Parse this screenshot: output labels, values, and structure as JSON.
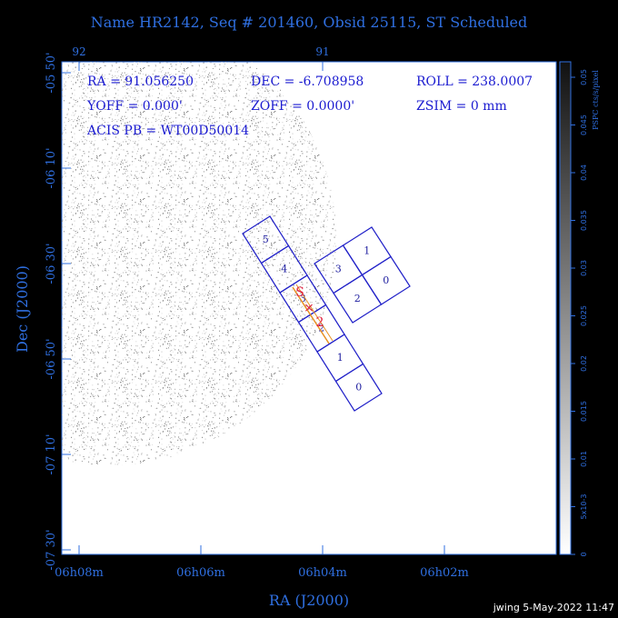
{
  "title": "Name HR2142, Seq # 201460, Obsid 25115, ST Scheduled",
  "info": [
    "RA = 91.056250",
    "DEC = -6.708958",
    "ROLL = 238.0007",
    "YOFF =    0.000'",
    "ZOFF =  0.0000'",
    "ZSIM = 0 mm",
    "ACIS PB = WT00D50014"
  ],
  "top_axis": {
    "tick_labels": [
      "92",
      "91"
    ]
  },
  "x_axis": {
    "label": "RA (J2000)",
    "tick_labels": [
      "06h08m",
      "06h06m",
      "06h04m",
      "06h02m"
    ]
  },
  "y_axis": {
    "label": "Dec (J2000)",
    "tick_labels": [
      "-05 50'",
      "-06 10'",
      "-06 30'",
      "-06 50'",
      "-07 10'",
      "-07 30'"
    ]
  },
  "colorbar": {
    "label": "PSPC cts/s/pixel",
    "tick_labels": [
      "0",
      "5x10-3",
      "0.01",
      "0.015",
      "0.02",
      "0.025",
      "0.03",
      "0.035",
      "0.04",
      "0.045",
      "0.05"
    ]
  },
  "chips": {
    "s_array": [
      "5",
      "4",
      "3",
      "2",
      "1",
      "0"
    ],
    "i_array": [
      "3",
      "1",
      "2",
      "0"
    ],
    "markers": [
      "S",
      "2"
    ]
  },
  "footer": "jwing  5-May-2022 11:47"
}
